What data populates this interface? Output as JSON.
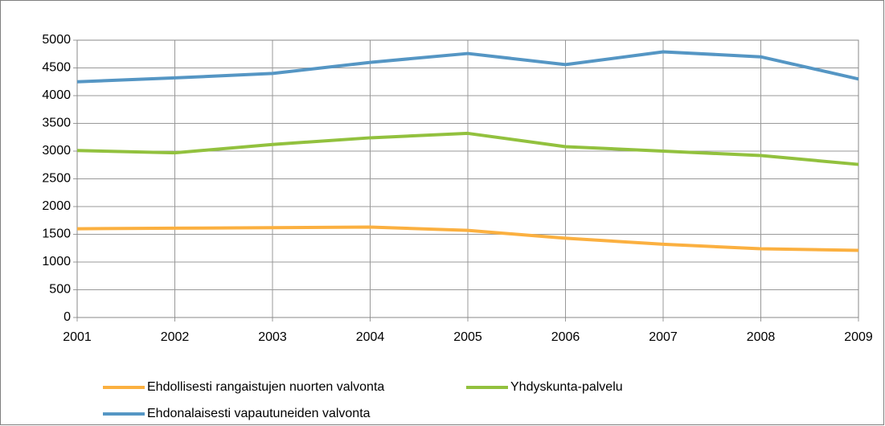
{
  "chart_data": {
    "type": "line",
    "categories": [
      "2001",
      "2002",
      "2003",
      "2004",
      "2005",
      "2006",
      "2007",
      "2008",
      "2009"
    ],
    "series": [
      {
        "name": "Ehdollisesti rangaistujen nuorten valvonta",
        "color": "#fbb040",
        "values": [
          1600,
          1610,
          1620,
          1630,
          1570,
          1430,
          1320,
          1240,
          1210
        ]
      },
      {
        "name": "Yhdyskunta-palvelu",
        "color": "#92c13e",
        "values": [
          3010,
          2970,
          3120,
          3240,
          3320,
          3080,
          3000,
          2920,
          2760
        ]
      },
      {
        "name": "Ehdonalaisesti vapautuneiden valvonta",
        "color": "#5596c4",
        "values": [
          4250,
          4320,
          4400,
          4600,
          4760,
          4560,
          4790,
          4700,
          4300
        ]
      }
    ],
    "ylim": [
      0,
      5000
    ],
    "yticks": [
      0,
      500,
      1000,
      1500,
      2000,
      2500,
      3000,
      3500,
      4000,
      4500,
      5000
    ],
    "grid": true,
    "legend": "bottom"
  }
}
